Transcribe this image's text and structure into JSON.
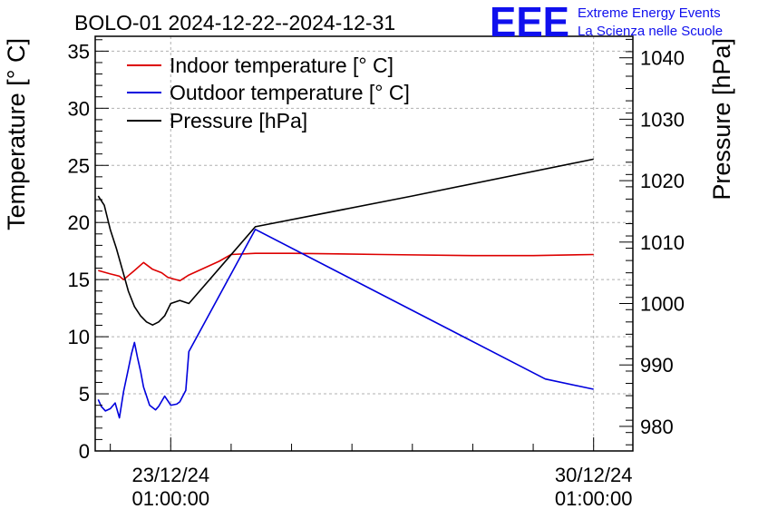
{
  "chart_data": {
    "type": "line",
    "title": "BOLO-01 2024-12-22--2024-12-31",
    "ylabel_left": "Temperature [° C]",
    "ylabel_right": "Pressure [hPa]",
    "xlabel": "",
    "ylim_left": [
      0,
      36.3
    ],
    "ylim_right": [
      976,
      1043.5
    ],
    "xlim_days": [
      -1.25,
      7.65
    ],
    "grid": true,
    "legend_position": "top-left",
    "x_ticks": [
      {
        "day": 0,
        "date": "23/12/24",
        "time": "01:00:00"
      },
      {
        "day": 7,
        "date": "30/12/24",
        "time": "01:00:00"
      }
    ],
    "y_ticks_left": [
      0,
      5,
      10,
      15,
      20,
      25,
      30,
      35
    ],
    "y_ticks_right": [
      980,
      990,
      1000,
      1010,
      1020,
      1030,
      1040
    ],
    "series": [
      {
        "name": "Indoor temperature [° C]",
        "axis": "left",
        "color": "#dd0000",
        "x": [
          -1.2,
          -1.0,
          -0.85,
          -0.78,
          -0.6,
          -0.45,
          -0.3,
          -0.15,
          -0.05,
          0.15,
          0.3,
          0.8,
          1.0,
          1.4,
          2.0,
          3.5,
          5.0,
          6.0,
          7.0
        ],
        "y": [
          15.8,
          15.5,
          15.3,
          15.0,
          15.8,
          16.5,
          15.9,
          15.6,
          15.2,
          14.9,
          15.4,
          16.6,
          17.2,
          17.3,
          17.3,
          17.2,
          17.1,
          17.1,
          17.2
        ]
      },
      {
        "name": "Outdoor temperature [° C]",
        "axis": "left",
        "color": "#0000dd",
        "x": [
          -1.2,
          -1.15,
          -1.08,
          -1.0,
          -0.92,
          -0.85,
          -0.78,
          -0.7,
          -0.65,
          -0.6,
          -0.55,
          -0.5,
          -0.45,
          -0.35,
          -0.25,
          -0.2,
          -0.1,
          -0.05,
          0.0,
          0.1,
          0.15,
          0.25,
          0.3,
          1.4,
          6.2,
          7.0
        ],
        "y": [
          4.5,
          3.9,
          3.5,
          3.7,
          4.2,
          2.9,
          5.2,
          7.2,
          8.5,
          9.5,
          8.2,
          7.0,
          5.6,
          4.0,
          3.6,
          3.9,
          4.8,
          4.4,
          4.0,
          4.1,
          4.3,
          5.3,
          8.7,
          19.4,
          6.3,
          5.4
        ]
      },
      {
        "name": "Pressure [hPa]",
        "axis": "right",
        "color": "#000000",
        "x": [
          -1.2,
          -1.1,
          -1.0,
          -0.9,
          -0.8,
          -0.7,
          -0.6,
          -0.5,
          -0.4,
          -0.3,
          -0.2,
          -0.1,
          0.0,
          0.15,
          0.3,
          1.4,
          4.0,
          7.0
        ],
        "y": [
          1017.5,
          1016.0,
          1012.0,
          1009.0,
          1005.5,
          1002.0,
          999.5,
          998.0,
          997.0,
          996.5,
          997.0,
          998.0,
          1000.0,
          1000.5,
          1000.0,
          1012.5,
          1017.5,
          1023.5
        ]
      }
    ]
  },
  "logo": {
    "big": "EEE",
    "line1": "Extreme Energy Events",
    "line2": "La Scienza nelle Scuole"
  }
}
